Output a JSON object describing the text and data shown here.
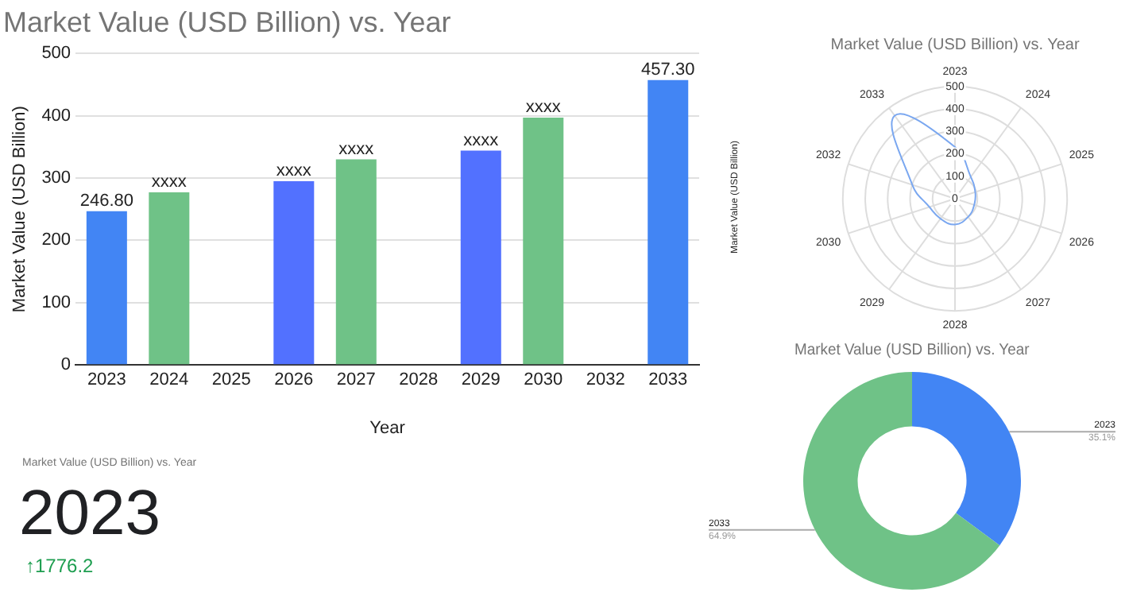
{
  "chart_data": [
    {
      "type": "bar",
      "title": "Market Value (USD Billion) vs. Year",
      "xlabel": "Year",
      "ylabel": "Market Value (USD Billion)",
      "categories": [
        "2023",
        "2024",
        "2025",
        "2026",
        "2027",
        "2028",
        "2029",
        "2030",
        "2032",
        "2033"
      ],
      "values": [
        246.8,
        277,
        null,
        295,
        330,
        null,
        344,
        397,
        null,
        457.3
      ],
      "colors": [
        "#4285f4",
        "#6fc287",
        null,
        "#5271ff",
        "#6fc287",
        null,
        "#5271ff",
        "#6fc287",
        null,
        "#4285f4"
      ],
      "value_labels": [
        "246.80",
        "xxxx",
        null,
        "xxxx",
        "xxxx",
        null,
        "xxxx",
        "xxxx",
        null,
        "457.30"
      ],
      "ylim": [
        0,
        500
      ],
      "yticks": [
        0,
        100,
        200,
        300,
        400,
        500
      ],
      "grid": "y",
      "legend": false
    },
    {
      "type": "radar",
      "title": "Market Value (USD Billion) vs. Year",
      "ylabel": "Market Value (USD Billion)",
      "categories": [
        "2023",
        "2024",
        "2025",
        "2026",
        "2027",
        "2028",
        "2029",
        "2030",
        "2032",
        "2033"
      ],
      "series": [
        {
          "color": "#7aa7f0",
          "values": [
            230,
            120,
            95,
            90,
            100,
            115,
            110,
            120,
            200,
            457.3
          ]
        }
      ],
      "ylim": [
        0,
        500
      ],
      "yticks": [
        0,
        100,
        200,
        300,
        400,
        500
      ],
      "grid": true,
      "legend": false,
      "marker": "none"
    },
    {
      "type": "other",
      "title": "Market Value (USD Billion) vs. Year",
      "annotations": [
        "2023",
        "↑1776.2"
      ]
    },
    {
      "type": "donut",
      "title": "Market Value (USD Billion) vs. Year",
      "categories": [
        "2023",
        "2033"
      ],
      "values": [
        35.1,
        64.9
      ],
      "colors": [
        "#4285f4",
        "#6fc287"
      ],
      "value_labels": [
        "35.1%",
        "64.9%"
      ],
      "legend": false
    }
  ]
}
